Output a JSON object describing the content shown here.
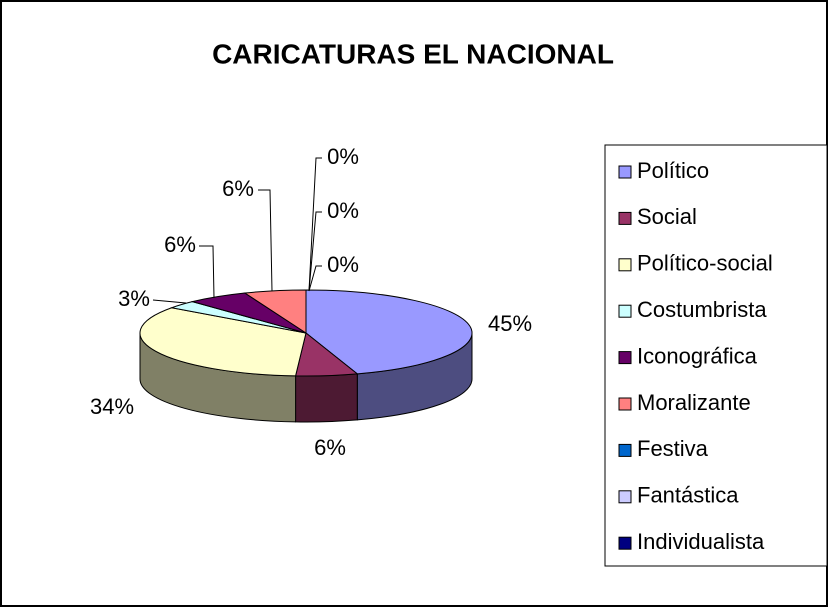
{
  "chart_data": {
    "type": "pie",
    "title": "CARICATURAS EL NACIONAL",
    "categories": [
      "Político",
      "Social",
      "Político-social",
      "Costumbrista",
      "Iconográfica",
      "Moralizante",
      "Festiva",
      "Fantástica",
      "Individualista"
    ],
    "values": [
      45,
      6,
      34,
      3,
      6,
      6,
      0,
      0,
      0
    ],
    "value_labels": [
      "45%",
      "6%",
      "34%",
      "3%",
      "6%",
      "6%",
      "0%",
      "0%",
      "0%"
    ],
    "colors": [
      "#9999ff",
      "#993366",
      "#ffffcc",
      "#ccffff",
      "#660066",
      "#ff8080",
      "#0066cc",
      "#ccccff",
      "#000080"
    ],
    "legend": "right"
  }
}
